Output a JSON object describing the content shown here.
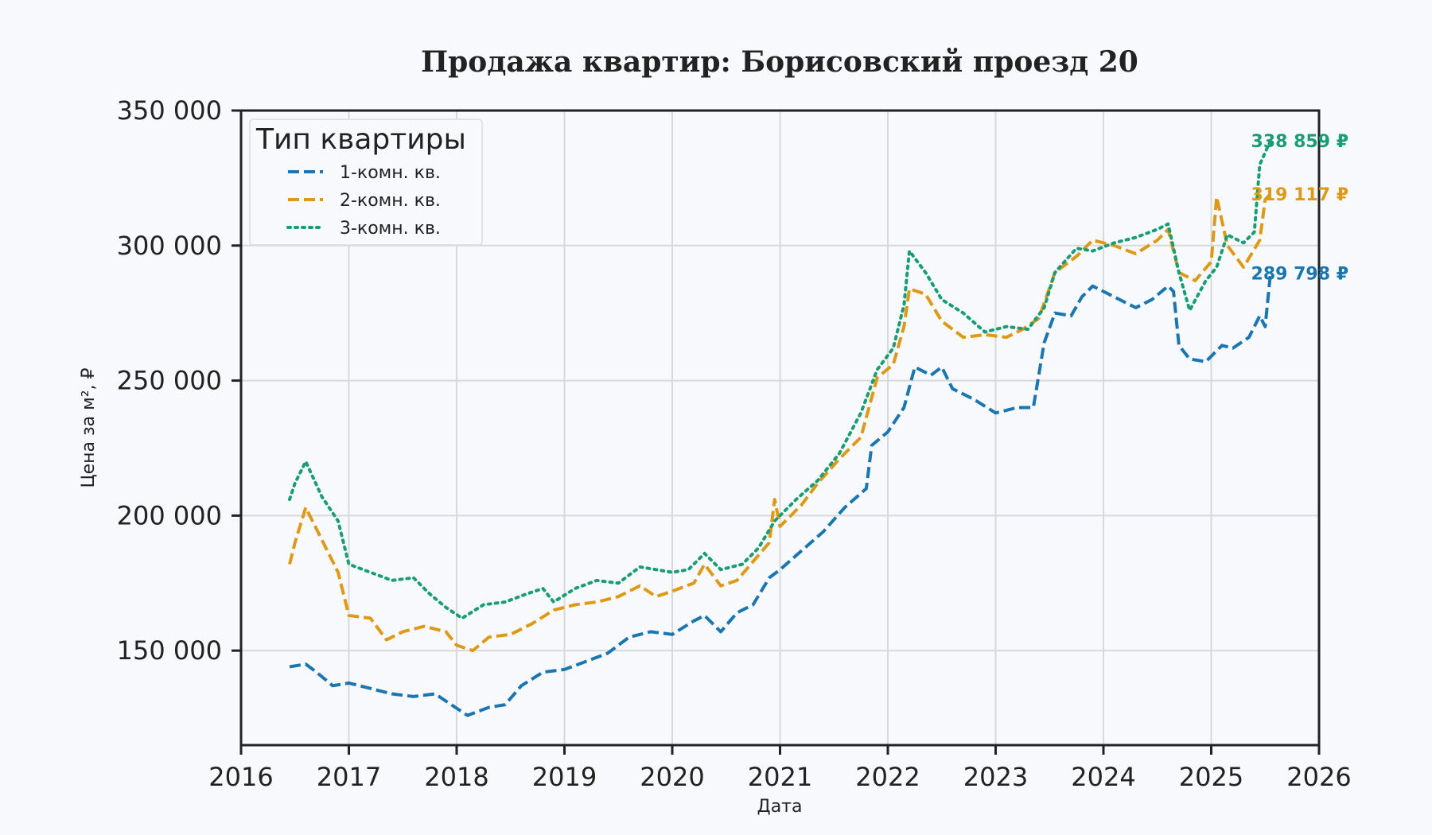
{
  "chart_data": {
    "type": "line",
    "title": "Продажа квартир: Борисовский проезд 20",
    "xlabel": "Дата",
    "ylabel": "Цена за м², ₽",
    "xlim": [
      2016.0,
      2026.0
    ],
    "ylim": [
      115000,
      350000
    ],
    "x_ticks": [
      "2016",
      "2017",
      "2018",
      "2019",
      "2020",
      "2021",
      "2022",
      "2023",
      "2024",
      "2025",
      "2026"
    ],
    "y_ticks": [
      {
        "value": 150000,
        "label": "150 000"
      },
      {
        "value": 200000,
        "label": "200 000"
      },
      {
        "value": 250000,
        "label": "250 000"
      },
      {
        "value": 300000,
        "label": "300 000"
      },
      {
        "value": 350000,
        "label": "350 000"
      }
    ],
    "grid": true,
    "legend": {
      "title": "Тип квартиры",
      "placement": "upper-left"
    },
    "series": [
      {
        "name": "1-комн. кв.",
        "color": "#1a76b0",
        "style": "dashed",
        "end_label": "289 798 ₽",
        "points": [
          [
            2016.45,
            144000
          ],
          [
            2016.6,
            145000
          ],
          [
            2016.7,
            142000
          ],
          [
            2016.85,
            137000
          ],
          [
            2017.0,
            138000
          ],
          [
            2017.2,
            136000
          ],
          [
            2017.4,
            134000
          ],
          [
            2017.6,
            133000
          ],
          [
            2017.8,
            134000
          ],
          [
            2017.95,
            130000
          ],
          [
            2018.1,
            126000
          ],
          [
            2018.3,
            129000
          ],
          [
            2018.45,
            130000
          ],
          [
            2018.6,
            137000
          ],
          [
            2018.8,
            142000
          ],
          [
            2019.0,
            143000
          ],
          [
            2019.2,
            146000
          ],
          [
            2019.4,
            149000
          ],
          [
            2019.6,
            155000
          ],
          [
            2019.8,
            157000
          ],
          [
            2020.0,
            156000
          ],
          [
            2020.2,
            161000
          ],
          [
            2020.3,
            163000
          ],
          [
            2020.45,
            157000
          ],
          [
            2020.6,
            164000
          ],
          [
            2020.75,
            167000
          ],
          [
            2020.9,
            177000
          ],
          [
            2021.0,
            180000
          ],
          [
            2021.2,
            187000
          ],
          [
            2021.4,
            194000
          ],
          [
            2021.6,
            203000
          ],
          [
            2021.8,
            210000
          ],
          [
            2021.85,
            226000
          ],
          [
            2022.0,
            231000
          ],
          [
            2022.15,
            240000
          ],
          [
            2022.25,
            255000
          ],
          [
            2022.4,
            252000
          ],
          [
            2022.5,
            255000
          ],
          [
            2022.6,
            247000
          ],
          [
            2022.8,
            243000
          ],
          [
            2023.0,
            238000
          ],
          [
            2023.2,
            240000
          ],
          [
            2023.35,
            240000
          ],
          [
            2023.45,
            264000
          ],
          [
            2023.55,
            275000
          ],
          [
            2023.7,
            274000
          ],
          [
            2023.8,
            281000
          ],
          [
            2023.9,
            285000
          ],
          [
            2024.0,
            283000
          ],
          [
            2024.15,
            280000
          ],
          [
            2024.3,
            277000
          ],
          [
            2024.45,
            280000
          ],
          [
            2024.6,
            285000
          ],
          [
            2024.65,
            283000
          ],
          [
            2024.7,
            263000
          ],
          [
            2024.8,
            258000
          ],
          [
            2024.95,
            257000
          ],
          [
            2025.1,
            263000
          ],
          [
            2025.2,
            262000
          ],
          [
            2025.35,
            266000
          ],
          [
            2025.45,
            274000
          ],
          [
            2025.5,
            270000
          ],
          [
            2025.55,
            289798
          ]
        ]
      },
      {
        "name": "2-комн. кв.",
        "color": "#de9a16",
        "style": "dashed",
        "end_label": "319 117 ₽",
        "points": [
          [
            2016.45,
            182000
          ],
          [
            2016.5,
            190000
          ],
          [
            2016.6,
            203000
          ],
          [
            2016.75,
            191000
          ],
          [
            2016.9,
            179000
          ],
          [
            2017.0,
            163000
          ],
          [
            2017.2,
            162000
          ],
          [
            2017.35,
            154000
          ],
          [
            2017.5,
            157000
          ],
          [
            2017.7,
            159000
          ],
          [
            2017.9,
            157000
          ],
          [
            2018.0,
            152000
          ],
          [
            2018.15,
            150000
          ],
          [
            2018.3,
            155000
          ],
          [
            2018.5,
            156000
          ],
          [
            2018.7,
            160000
          ],
          [
            2018.9,
            165000
          ],
          [
            2019.1,
            167000
          ],
          [
            2019.3,
            168000
          ],
          [
            2019.5,
            170000
          ],
          [
            2019.7,
            174000
          ],
          [
            2019.85,
            170000
          ],
          [
            2020.0,
            172000
          ],
          [
            2020.2,
            175000
          ],
          [
            2020.3,
            182000
          ],
          [
            2020.45,
            174000
          ],
          [
            2020.6,
            176000
          ],
          [
            2020.75,
            183000
          ],
          [
            2020.9,
            190000
          ],
          [
            2020.95,
            206000
          ],
          [
            2021.0,
            196000
          ],
          [
            2021.2,
            204000
          ],
          [
            2021.35,
            212000
          ],
          [
            2021.55,
            221000
          ],
          [
            2021.75,
            229000
          ],
          [
            2021.9,
            251000
          ],
          [
            2022.05,
            256000
          ],
          [
            2022.15,
            270000
          ],
          [
            2022.2,
            284000
          ],
          [
            2022.35,
            282000
          ],
          [
            2022.5,
            272000
          ],
          [
            2022.7,
            266000
          ],
          [
            2022.9,
            267000
          ],
          [
            2023.1,
            266000
          ],
          [
            2023.25,
            269000
          ],
          [
            2023.4,
            273000
          ],
          [
            2023.55,
            290000
          ],
          [
            2023.75,
            296000
          ],
          [
            2023.9,
            302000
          ],
          [
            2024.1,
            300000
          ],
          [
            2024.3,
            297000
          ],
          [
            2024.5,
            302000
          ],
          [
            2024.6,
            306000
          ],
          [
            2024.7,
            290000
          ],
          [
            2024.85,
            287000
          ],
          [
            2025.0,
            294000
          ],
          [
            2025.05,
            318000
          ],
          [
            2025.15,
            300000
          ],
          [
            2025.3,
            292000
          ],
          [
            2025.45,
            302000
          ],
          [
            2025.5,
            317000
          ],
          [
            2025.55,
            319117
          ]
        ]
      },
      {
        "name": "3-комн. кв.",
        "color": "#189e72",
        "style": "dotted",
        "end_label": "338 859 ₽",
        "points": [
          [
            2016.45,
            206000
          ],
          [
            2016.5,
            212000
          ],
          [
            2016.6,
            220000
          ],
          [
            2016.75,
            207000
          ],
          [
            2016.9,
            198000
          ],
          [
            2017.0,
            182000
          ],
          [
            2017.2,
            179000
          ],
          [
            2017.4,
            176000
          ],
          [
            2017.6,
            177000
          ],
          [
            2017.75,
            171000
          ],
          [
            2017.9,
            166000
          ],
          [
            2018.05,
            162000
          ],
          [
            2018.25,
            167000
          ],
          [
            2018.45,
            168000
          ],
          [
            2018.65,
            171000
          ],
          [
            2018.8,
            173000
          ],
          [
            2018.9,
            168000
          ],
          [
            2019.1,
            173000
          ],
          [
            2019.3,
            176000
          ],
          [
            2019.5,
            175000
          ],
          [
            2019.7,
            181000
          ],
          [
            2019.85,
            180000
          ],
          [
            2020.0,
            179000
          ],
          [
            2020.15,
            180000
          ],
          [
            2020.3,
            186000
          ],
          [
            2020.45,
            180000
          ],
          [
            2020.65,
            182000
          ],
          [
            2020.8,
            188000
          ],
          [
            2020.95,
            198000
          ],
          [
            2021.15,
            206000
          ],
          [
            2021.35,
            213000
          ],
          [
            2021.55,
            223000
          ],
          [
            2021.75,
            238000
          ],
          [
            2021.9,
            254000
          ],
          [
            2022.05,
            262000
          ],
          [
            2022.15,
            278000
          ],
          [
            2022.2,
            298000
          ],
          [
            2022.35,
            290000
          ],
          [
            2022.5,
            280000
          ],
          [
            2022.7,
            275000
          ],
          [
            2022.9,
            268000
          ],
          [
            2023.1,
            270000
          ],
          [
            2023.3,
            269000
          ],
          [
            2023.45,
            277000
          ],
          [
            2023.55,
            290000
          ],
          [
            2023.75,
            299000
          ],
          [
            2023.9,
            298000
          ],
          [
            2024.1,
            301000
          ],
          [
            2024.3,
            303000
          ],
          [
            2024.5,
            306000
          ],
          [
            2024.6,
            308000
          ],
          [
            2024.7,
            290000
          ],
          [
            2024.8,
            276000
          ],
          [
            2024.95,
            287000
          ],
          [
            2025.05,
            292000
          ],
          [
            2025.15,
            304000
          ],
          [
            2025.3,
            301000
          ],
          [
            2025.4,
            305000
          ],
          [
            2025.45,
            330000
          ],
          [
            2025.55,
            338859
          ]
        ]
      }
    ]
  }
}
